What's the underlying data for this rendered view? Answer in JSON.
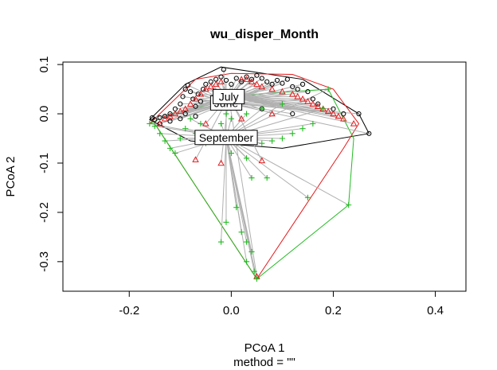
{
  "chart_data": {
    "type": "scatter",
    "title": "wu_disper_Month",
    "xlabel": "PCoA 1",
    "subtitle": "method = \"\"",
    "ylabel": "PCoA 2",
    "xlim": [
      -0.33,
      0.46
    ],
    "ylim": [
      -0.36,
      0.105
    ],
    "x_ticks": [
      -0.2,
      0.0,
      0.2,
      0.4
    ],
    "x_tick_labels": [
      "-0.2",
      "0.0",
      "0.2",
      "0.4"
    ],
    "y_ticks": [
      -0.3,
      -0.2,
      -0.1,
      0.0,
      0.1
    ],
    "y_tick_labels": [
      "-0.3",
      "-0.2",
      "-0.1",
      "0.0",
      "0.1"
    ],
    "grid": false,
    "colors": {
      "June": "#000000",
      "July": "#e41a1c",
      "September": "#22bb22",
      "spider": "#b0b0b0"
    },
    "groups": [
      {
        "name": "June",
        "marker": "circle",
        "color": "#000000",
        "centroid": [
          -0.01,
          0.022
        ],
        "hull": [
          [
            -0.16,
            -0.012
          ],
          [
            -0.09,
            0.06
          ],
          [
            -0.02,
            0.095
          ],
          [
            0.14,
            0.07
          ],
          [
            0.25,
            0.0
          ],
          [
            0.27,
            -0.04
          ],
          [
            0.1,
            -0.07
          ],
          [
            -0.08,
            -0.055
          ]
        ],
        "points": [
          [
            -0.155,
            -0.008
          ],
          [
            -0.15,
            -0.012
          ],
          [
            -0.14,
            -0.008
          ],
          [
            -0.13,
            -0.005
          ],
          [
            -0.12,
            0.0
          ],
          [
            -0.11,
            0.01
          ],
          [
            -0.1,
            0.02
          ],
          [
            -0.095,
            0.035
          ],
          [
            -0.09,
            0.05
          ],
          [
            -0.085,
            0.058
          ],
          [
            -0.08,
            0.045
          ],
          [
            -0.075,
            0.03
          ],
          [
            -0.07,
            0.015
          ],
          [
            -0.065,
            0.04
          ],
          [
            -0.06,
            0.025
          ],
          [
            -0.055,
            0.05
          ],
          [
            -0.05,
            0.06
          ],
          [
            -0.04,
            0.065
          ],
          [
            -0.03,
            0.07
          ],
          [
            -0.02,
            0.075
          ],
          [
            -0.015,
            0.09
          ],
          [
            -0.01,
            0.068
          ],
          [
            0.0,
            0.06
          ],
          [
            0.01,
            0.072
          ],
          [
            0.02,
            0.065
          ],
          [
            0.03,
            0.075
          ],
          [
            0.04,
            0.07
          ],
          [
            0.05,
            0.078
          ],
          [
            0.06,
            0.072
          ],
          [
            0.07,
            0.065
          ],
          [
            0.08,
            0.06
          ],
          [
            0.09,
            0.068
          ],
          [
            0.1,
            0.062
          ],
          [
            0.11,
            0.07
          ],
          [
            0.12,
            0.055
          ],
          [
            0.13,
            0.05
          ],
          [
            0.14,
            0.06
          ],
          [
            0.15,
            0.045
          ],
          [
            0.16,
            0.03
          ],
          [
            0.17,
            0.02
          ],
          [
            0.2,
            0.01
          ],
          [
            0.22,
            0.0
          ],
          [
            0.25,
            0.0
          ],
          [
            0.27,
            -0.04
          ],
          [
            0.12,
            0.0
          ],
          [
            0.06,
            0.01
          ],
          [
            -0.14,
            -0.02
          ],
          [
            -0.12,
            -0.015
          ],
          [
            -0.1,
            -0.01
          ],
          [
            -0.09,
            0.0
          ],
          [
            -0.07,
            -0.005
          ]
        ]
      },
      {
        "name": "July",
        "marker": "triangle",
        "color": "#e41a1c",
        "centroid": [
          -0.005,
          0.035
        ],
        "hull": [
          [
            -0.16,
            -0.02
          ],
          [
            -0.07,
            0.07
          ],
          [
            0.0,
            0.082
          ],
          [
            0.12,
            0.08
          ],
          [
            0.2,
            0.05
          ],
          [
            0.25,
            -0.02
          ],
          [
            0.22,
            -0.07
          ],
          [
            0.05,
            -0.335
          ],
          [
            -0.15,
            -0.02
          ]
        ],
        "points": [
          [
            -0.14,
            -0.02
          ],
          [
            -0.13,
            -0.01
          ],
          [
            -0.12,
            -0.005
          ],
          [
            -0.11,
            0.0
          ],
          [
            -0.1,
            0.005
          ],
          [
            -0.09,
            0.01
          ],
          [
            -0.08,
            0.02
          ],
          [
            -0.07,
            0.03
          ],
          [
            -0.06,
            0.04
          ],
          [
            -0.05,
            0.05
          ],
          [
            -0.04,
            0.055
          ],
          [
            -0.03,
            0.06
          ],
          [
            -0.02,
            0.065
          ],
          [
            0.02,
            0.07
          ],
          [
            0.03,
            0.07
          ],
          [
            0.04,
            0.065
          ],
          [
            0.05,
            0.06
          ],
          [
            0.06,
            0.055
          ],
          [
            0.08,
            0.05
          ],
          [
            0.1,
            0.045
          ],
          [
            0.12,
            0.04
          ],
          [
            0.13,
            0.035
          ],
          [
            0.14,
            0.03
          ],
          [
            0.15,
            0.025
          ],
          [
            0.16,
            0.02
          ],
          [
            0.17,
            0.015
          ],
          [
            0.18,
            0.01
          ],
          [
            0.19,
            0.005
          ],
          [
            0.2,
            0.0
          ],
          [
            0.21,
            -0.005
          ],
          [
            0.22,
            -0.01
          ],
          [
            0.24,
            -0.02
          ],
          [
            -0.07,
            -0.093
          ],
          [
            -0.02,
            -0.1
          ],
          [
            0.06,
            -0.095
          ],
          [
            0.05,
            -0.33
          ],
          [
            0.0,
            0.02
          ],
          [
            0.02,
            -0.01
          ],
          [
            -0.05,
            -0.02
          ],
          [
            0.08,
            0.0
          ]
        ]
      },
      {
        "name": "September",
        "marker": "plus",
        "color": "#22bb22",
        "centroid": [
          -0.01,
          -0.048
        ],
        "hull": [
          [
            -0.16,
            -0.02
          ],
          [
            -0.12,
            0.0
          ],
          [
            0.05,
            0.04
          ],
          [
            0.19,
            0.05
          ],
          [
            0.24,
            -0.05
          ],
          [
            0.23,
            -0.185
          ],
          [
            0.05,
            -0.335
          ],
          [
            -0.15,
            -0.02
          ]
        ],
        "points": [
          [
            -0.16,
            -0.02
          ],
          [
            -0.15,
            -0.025
          ],
          [
            -0.14,
            -0.04
          ],
          [
            -0.13,
            -0.055
          ],
          [
            -0.12,
            -0.07
          ],
          [
            -0.11,
            -0.08
          ],
          [
            -0.1,
            -0.05
          ],
          [
            -0.09,
            -0.03
          ],
          [
            -0.08,
            -0.01
          ],
          [
            -0.06,
            -0.02
          ],
          [
            -0.04,
            -0.04
          ],
          [
            -0.02,
            -0.02
          ],
          [
            -0.01,
            0.0
          ],
          [
            0.0,
            -0.01
          ],
          [
            0.01,
            -0.05
          ],
          [
            0.02,
            -0.06
          ],
          [
            0.04,
            -0.05
          ],
          [
            0.06,
            -0.06
          ],
          [
            0.08,
            -0.055
          ],
          [
            0.1,
            -0.05
          ],
          [
            0.12,
            -0.04
          ],
          [
            0.14,
            -0.03
          ],
          [
            0.16,
            -0.02
          ],
          [
            0.18,
            0.01
          ],
          [
            0.19,
            0.05
          ],
          [
            0.1,
            0.02
          ],
          [
            0.06,
            0.01
          ],
          [
            0.03,
            0.0
          ],
          [
            0.07,
            -0.13
          ],
          [
            0.04,
            -0.13
          ],
          [
            0.01,
            -0.19
          ],
          [
            -0.01,
            -0.22
          ],
          [
            -0.02,
            -0.26
          ],
          [
            0.02,
            -0.24
          ],
          [
            0.03,
            -0.26
          ],
          [
            0.04,
            -0.28
          ],
          [
            0.03,
            -0.3
          ],
          [
            0.045,
            -0.32
          ],
          [
            0.05,
            -0.335
          ],
          [
            0.15,
            -0.17
          ],
          [
            0.23,
            -0.185
          ],
          [
            -0.07,
            -0.04
          ],
          [
            -0.05,
            -0.06
          ],
          [
            0.0,
            -0.08
          ],
          [
            0.03,
            -0.09
          ]
        ]
      }
    ]
  }
}
